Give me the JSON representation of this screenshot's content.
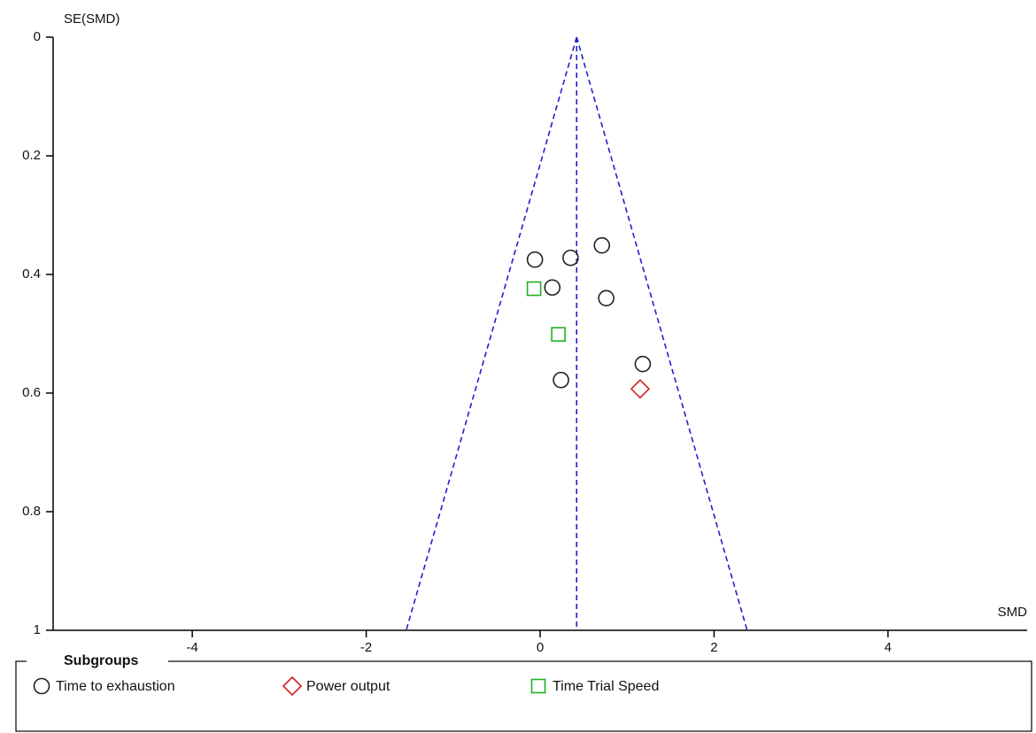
{
  "chart_data": {
    "type": "scatter",
    "xlabel": "SMD",
    "ylabel": "SE(SMD)",
    "xlim": [
      -5.6,
      5.6
    ],
    "ylim": [
      0,
      1
    ],
    "y_inverted": true,
    "xticks": [
      -4,
      -2,
      0,
      2,
      4
    ],
    "yticks": [
      0,
      0.2,
      0.4,
      0.6,
      0.8,
      1
    ],
    "funnel": {
      "center": 0.42,
      "z": 1.96,
      "color": "#2020d0"
    },
    "legend_title": "Subgroups",
    "series": [
      {
        "name": "Time to exhaustion",
        "marker": "circle",
        "color": "#222222",
        "x": [
          -0.06,
          0.35,
          0.71,
          0.14,
          0.76,
          1.18,
          0.24
        ],
        "y": [
          0.375,
          0.372,
          0.351,
          0.422,
          0.44,
          0.551,
          0.578
        ]
      },
      {
        "name": "Power output",
        "marker": "diamond",
        "color": "#d42020",
        "x": [
          1.15
        ],
        "y": [
          0.593
        ]
      },
      {
        "name": "Time Trial Speed",
        "marker": "square",
        "color": "#20b020",
        "x": [
          -0.07,
          0.21
        ],
        "y": [
          0.424,
          0.501
        ]
      }
    ]
  }
}
